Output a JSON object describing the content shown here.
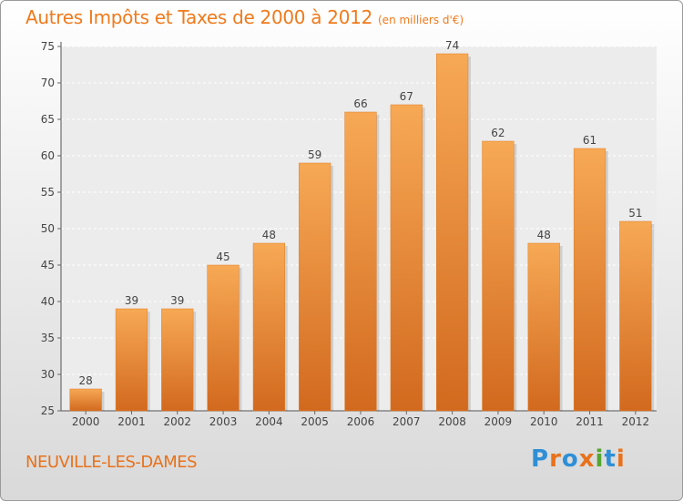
{
  "title": "Autres Impôts et Taxes de 2000 à 2012",
  "unit": "(en milliers d'€)",
  "location": "NEUVILLE-LES-DAMES",
  "logo": {
    "text": "Proxiti",
    "colors": [
      "#2f8fd6",
      "#e8721c",
      "#2f8fd6",
      "#e8721c",
      "#55a630",
      "#2f8fd6",
      "#e8721c"
    ]
  },
  "colors": {
    "bar": "#f08a2c",
    "bar_light": "#f7a955",
    "bar_dark": "#d2691e",
    "accent": "#f07a1c"
  },
  "chart_data": {
    "type": "bar",
    "categories": [
      "2000",
      "2001",
      "2002",
      "2003",
      "2004",
      "2005",
      "2006",
      "2007",
      "2008",
      "2009",
      "2010",
      "2011",
      "2012"
    ],
    "values": [
      28,
      39,
      39,
      45,
      48,
      59,
      66,
      67,
      74,
      62,
      48,
      61,
      51
    ],
    "ylim": [
      25,
      75
    ],
    "yticks": [
      25,
      30,
      35,
      40,
      45,
      50,
      55,
      60,
      65,
      70,
      75
    ],
    "grid": true,
    "data_labels": true
  }
}
